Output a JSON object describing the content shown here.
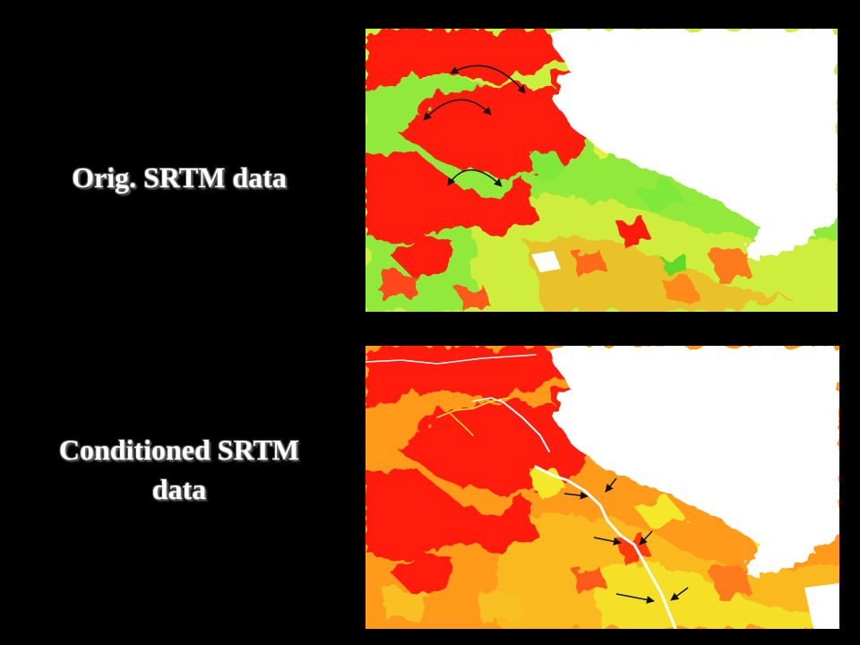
{
  "labels": {
    "original": "Orig. SRTM data",
    "conditioned_line1": "Conditioned SRTM",
    "conditioned_line2": "data"
  },
  "colors": {
    "background": "#000000",
    "text": "#ffffff",
    "high": "#ff1a0a",
    "mid_orange": "#ff9a1a",
    "yellow": "#f4e82a",
    "light_green": "#c8f040",
    "green": "#7ee83a",
    "water": "#ffffff",
    "arrow": "#111111"
  },
  "panels": [
    {
      "name": "original-srtm-terrain",
      "palette": "red-yellow-green"
    },
    {
      "name": "conditioned-srtm-terrain",
      "palette": "red-orange-yellow",
      "has_stream_line": true
    }
  ]
}
